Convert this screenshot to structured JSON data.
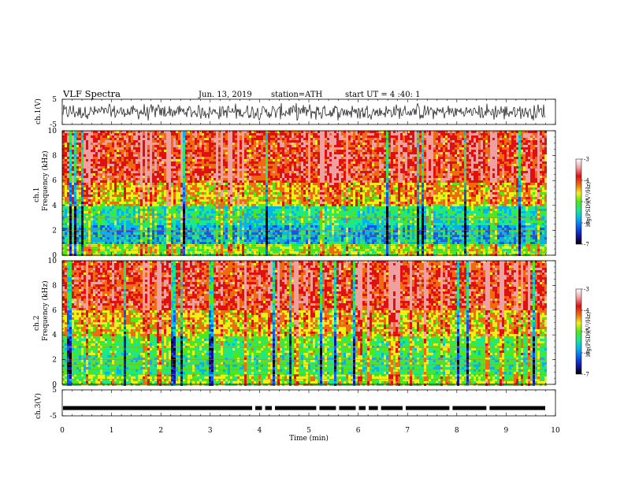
{
  "header": {
    "title": "VLF Spectra",
    "date": "Jun. 13, 2019",
    "station": "station=ATH",
    "start": "start UT = 4 :40: 1"
  },
  "chart_data": [
    {
      "type": "line",
      "ylabel": "ch.1(V)",
      "ylim": [
        -5,
        5
      ],
      "yticks": [
        "5",
        "-5"
      ],
      "xlim": [
        0,
        10
      ],
      "approx_level": 0.0,
      "approx_amplitude": 2.5
    },
    {
      "type": "heatmap",
      "ylabel_channel": "ch.1",
      "ylabel": "Frequency (kHz)",
      "ylim": [
        0,
        10
      ],
      "yticks": [
        "0",
        "2",
        "4",
        "6",
        "8",
        "10"
      ],
      "xlim": [
        0,
        10
      ],
      "colorbar": {
        "label": "log(PSD)(V²/Hz)",
        "range": [
          -7,
          -3
        ],
        "ticks": [
          "-3",
          "-4",
          "-5",
          "-6",
          "-7"
        ]
      }
    },
    {
      "type": "heatmap",
      "ylabel_channel": "ch.2",
      "ylabel": "Frequency (kHz)",
      "ylim": [
        0,
        10
      ],
      "yticks": [
        "0",
        "2",
        "4",
        "6",
        "8",
        "10"
      ],
      "xlim": [
        0,
        10
      ],
      "colorbar": {
        "label": "log(PSD)(V²/Hz)",
        "range": [
          -7,
          -3
        ],
        "ticks": [
          "-3",
          "-4",
          "-5",
          "-6",
          "-7"
        ]
      }
    },
    {
      "type": "line",
      "ylabel": "ch.3(V)",
      "ylim": [
        -5,
        5
      ],
      "yticks": [
        "5",
        "-5"
      ],
      "xlim": [
        0,
        10
      ],
      "approx_level": -2.0
    }
  ],
  "xaxis": {
    "label": "Time (min)",
    "ticks": [
      "0",
      "1",
      "2",
      "3",
      "4",
      "5",
      "6",
      "7",
      "8",
      "9",
      "10"
    ]
  },
  "colors": {
    "colormap": [
      "#000000",
      "#1414a8",
      "#0a5af0",
      "#00b4f0",
      "#18e890",
      "#4ee81a",
      "#f0f014",
      "#f06a10",
      "#e01010",
      "#f0a0a0",
      "#ffffff"
    ]
  }
}
